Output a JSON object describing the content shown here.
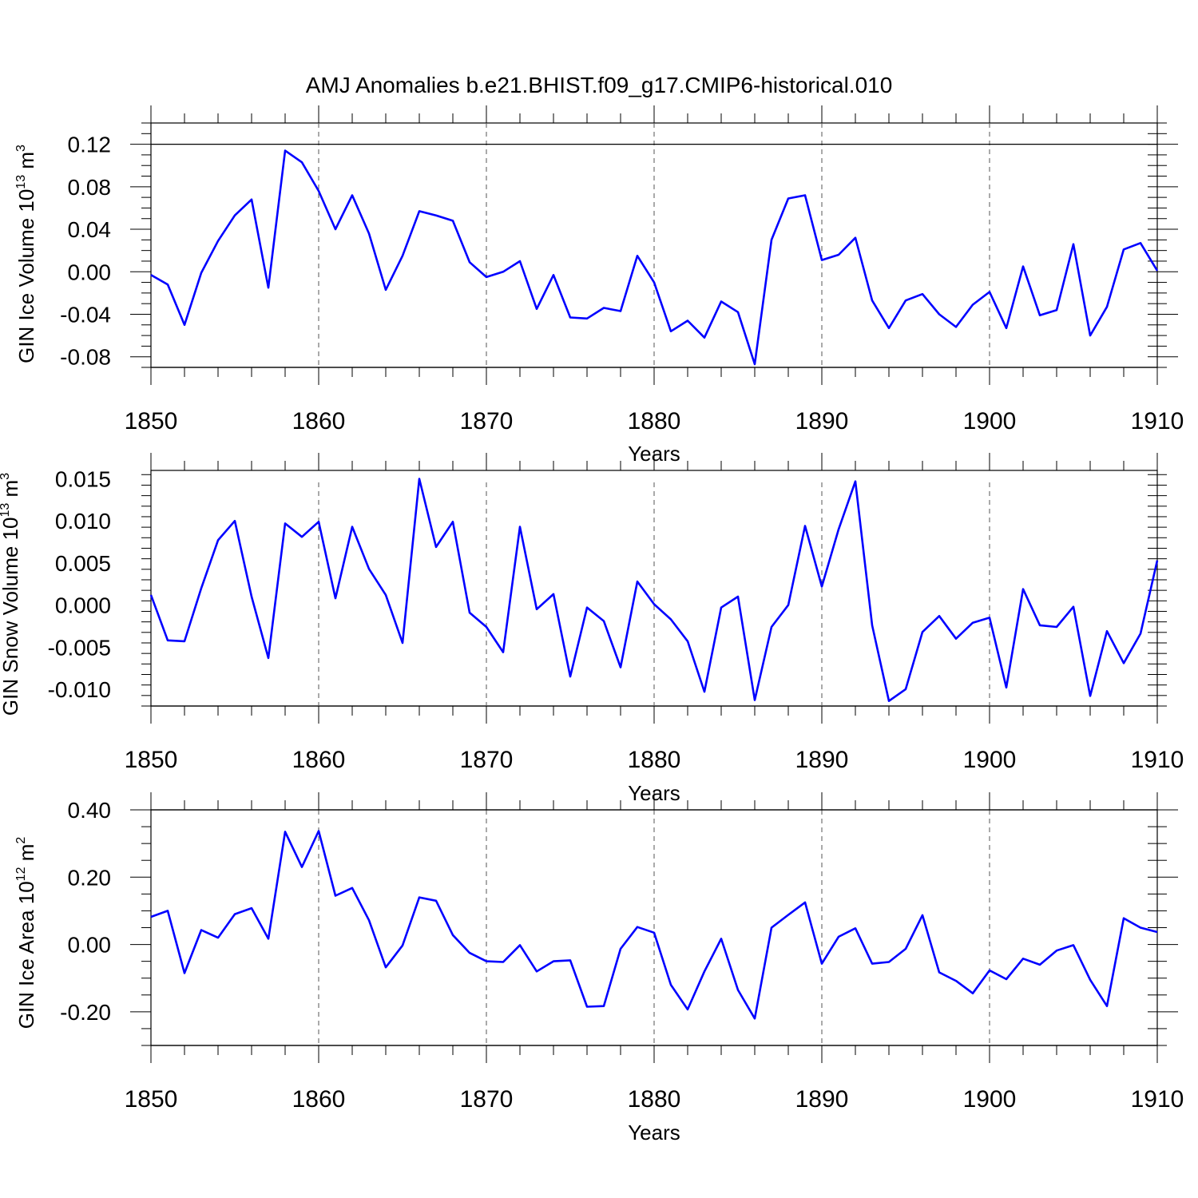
{
  "title": "AMJ Anomalies b.e21.BHIST.f09_g17.CMIP6-historical.010",
  "colors": {
    "line": "#0000ff",
    "axis": "#000000",
    "grid": "#555555"
  },
  "chart_data": [
    {
      "type": "line",
      "ylabel": {
        "main": "GIN Ice Volume 10",
        "sup": "13",
        "tail": " m",
        "sup2": "3"
      },
      "xlabel": "Years",
      "xlim": [
        1850,
        1910
      ],
      "ylim": [
        -0.09,
        0.14
      ],
      "yticks": [
        -0.08,
        -0.04,
        0.0,
        0.04,
        0.08,
        0.12
      ],
      "ytick_labels": [
        "-0.08",
        "-0.04",
        "0.00",
        "0.04",
        "0.08",
        "0.12"
      ],
      "xticks": [
        1850,
        1860,
        1870,
        1880,
        1890,
        1900,
        1910
      ],
      "xtick_labels": [
        "1850",
        "1860",
        "1870",
        "1880",
        "1890",
        "1900",
        "1910"
      ],
      "ref_line": 0.12,
      "x_start": 1850,
      "values": [
        -0.003,
        -0.012,
        -0.05,
        -0.001,
        0.029,
        0.053,
        0.068,
        -0.015,
        0.114,
        0.103,
        0.076,
        0.04,
        0.072,
        0.036,
        -0.017,
        0.015,
        0.057,
        0.053,
        0.048,
        0.009,
        -0.005,
        0.0,
        0.01,
        -0.035,
        -0.003,
        -0.043,
        -0.044,
        -0.034,
        -0.037,
        0.015,
        -0.01,
        -0.056,
        -0.046,
        -0.062,
        -0.028,
        -0.038,
        -0.087,
        0.03,
        0.069,
        0.072,
        0.011,
        0.016,
        0.032,
        -0.027,
        -0.053,
        -0.027,
        -0.021,
        -0.04,
        -0.052,
        -0.031,
        -0.019,
        -0.053,
        0.005,
        -0.041,
        -0.036,
        0.026,
        -0.06,
        -0.033,
        0.021,
        0.027,
        0.001
      ]
    },
    {
      "type": "line",
      "ylabel": {
        "main": "GIN Snow Volume 10",
        "sup": "13",
        "tail": " m",
        "sup2": "3"
      },
      "xlabel": "Years",
      "xlim": [
        1850,
        1910
      ],
      "ylim": [
        -0.012,
        0.016
      ],
      "yticks": [
        -0.01,
        -0.005,
        0.0,
        0.005,
        0.01,
        0.015
      ],
      "ytick_labels": [
        "-0.010",
        "-0.005",
        "0.000",
        "0.005",
        "0.010",
        "0.015"
      ],
      "xticks": [
        1850,
        1860,
        1870,
        1880,
        1890,
        1900,
        1910
      ],
      "xtick_labels": [
        "1850",
        "1860",
        "1870",
        "1880",
        "1890",
        "1900",
        "1910"
      ],
      "ref_line": null,
      "x_start": 1850,
      "values": [
        0.0012,
        -0.0042,
        -0.0043,
        0.002,
        0.0077,
        0.01,
        0.001,
        -0.0063,
        0.0097,
        0.0081,
        0.0099,
        0.0008,
        0.0093,
        0.0043,
        0.0012,
        -0.0045,
        0.015,
        0.0069,
        0.0099,
        -0.0009,
        -0.0026,
        -0.0056,
        0.0093,
        -0.0005,
        0.0013,
        -0.0085,
        -0.0003,
        -0.0019,
        -0.0074,
        0.0028,
        0.0001,
        -0.0017,
        -0.0043,
        -0.0103,
        -0.0003,
        0.001,
        -0.0113,
        -0.0026,
        0.0,
        0.0094,
        0.0022,
        0.009,
        0.0147,
        -0.0024,
        -0.0114,
        -0.01,
        -0.0032,
        -0.0013,
        -0.004,
        -0.0021,
        -0.0015,
        -0.0098,
        0.0019,
        -0.0024,
        -0.0026,
        -0.0002,
        -0.0108,
        -0.0031,
        -0.0069,
        -0.0034,
        0.0053
      ]
    },
    {
      "type": "line",
      "ylabel": {
        "main": "GIN Ice Area 10",
        "sup": "12",
        "tail": " m",
        "sup2": "2"
      },
      "xlabel": "Years",
      "xlim": [
        1850,
        1910
      ],
      "ylim": [
        -0.3,
        0.4
      ],
      "yticks": [
        -0.2,
        0.0,
        0.2,
        0.4
      ],
      "ytick_labels": [
        "-0.20",
        "0.00",
        "0.20",
        "0.40"
      ],
      "xticks": [
        1850,
        1860,
        1870,
        1880,
        1890,
        1900,
        1910
      ],
      "xtick_labels": [
        "1850",
        "1860",
        "1870",
        "1880",
        "1890",
        "1900",
        "1910"
      ],
      "ref_line": 0.4,
      "x_start": 1850,
      "values": [
        0.082,
        0.1,
        -0.085,
        0.043,
        0.02,
        0.09,
        0.108,
        0.017,
        0.335,
        0.23,
        0.337,
        0.145,
        0.168,
        0.072,
        -0.068,
        -0.003,
        0.14,
        0.13,
        0.028,
        -0.025,
        -0.05,
        -0.052,
        -0.002,
        -0.08,
        -0.05,
        -0.047,
        -0.185,
        -0.183,
        -0.013,
        0.052,
        0.035,
        -0.12,
        -0.193,
        -0.08,
        0.017,
        -0.135,
        -0.22,
        0.05,
        0.088,
        0.125,
        -0.057,
        0.023,
        0.048,
        -0.057,
        -0.052,
        -0.013,
        0.087,
        -0.083,
        -0.108,
        -0.145,
        -0.077,
        -0.103,
        -0.042,
        -0.06,
        -0.018,
        -0.002,
        -0.105,
        -0.183,
        0.078,
        0.05,
        0.037
      ]
    }
  ]
}
